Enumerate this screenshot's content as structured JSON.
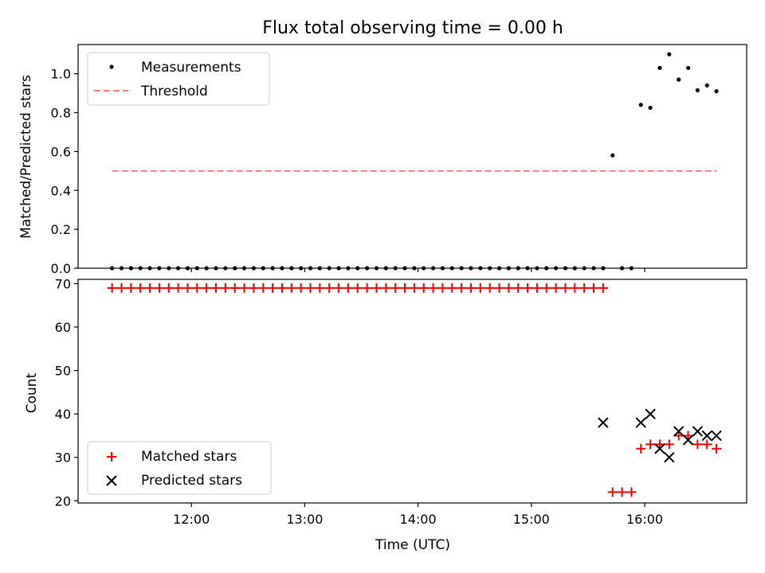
{
  "chart_data": [
    {
      "type": "scatter",
      "title": "Flux total observing time = 0.00 h",
      "xlabel": "",
      "ylabel": "Matched/Predicted stars",
      "ylim": [
        0,
        1.15
      ],
      "yticks": [
        "0.0",
        "0.2",
        "0.4",
        "0.6",
        "0.8",
        "1.0"
      ],
      "xlim": [
        "11:00",
        "16:54"
      ],
      "legend_position": "upper-left",
      "colors": {
        "measurements": "#000000",
        "threshold": "#ff7f7f"
      },
      "series": [
        {
          "name": "Measurements",
          "marker": "dot",
          "x": [
            "11:18",
            "11:23",
            "11:28",
            "11:33",
            "11:38",
            "11:43",
            "11:48",
            "11:53",
            "11:58",
            "12:03",
            "12:08",
            "12:13",
            "12:18",
            "12:23",
            "12:28",
            "12:33",
            "12:38",
            "12:43",
            "12:48",
            "12:53",
            "12:58",
            "13:03",
            "13:08",
            "13:13",
            "13:18",
            "13:23",
            "13:28",
            "13:33",
            "13:38",
            "13:43",
            "13:48",
            "13:53",
            "13:58",
            "14:03",
            "14:08",
            "14:13",
            "14:18",
            "14:23",
            "14:28",
            "14:33",
            "14:38",
            "14:43",
            "14:48",
            "14:53",
            "14:58",
            "15:03",
            "15:08",
            "15:13",
            "15:18",
            "15:23",
            "15:28",
            "15:33",
            "15:38",
            "15:43",
            "15:48",
            "15:53",
            "15:58",
            "16:03",
            "16:08",
            "16:13",
            "16:18",
            "16:23",
            "16:28",
            "16:33",
            "16:38"
          ],
          "y": [
            0,
            0,
            0,
            0,
            0,
            0,
            0,
            0,
            0,
            0,
            0,
            0,
            0,
            0,
            0,
            0,
            0,
            0,
            0,
            0,
            0,
            0,
            0,
            0,
            0,
            0,
            0,
            0,
            0,
            0,
            0,
            0,
            0,
            0,
            0,
            0,
            0,
            0,
            0,
            0,
            0,
            0,
            0,
            0,
            0,
            0,
            0,
            0,
            0,
            0,
            0,
            0,
            0,
            0.58,
            0,
            0,
            0.84,
            0.825,
            1.03,
            1.1,
            0.97,
            1.03,
            0.915,
            0.94,
            0.91
          ]
        },
        {
          "name": "Threshold",
          "style": "dashed-line",
          "x": [
            "11:18",
            "16:38"
          ],
          "y": [
            0.5,
            0.5
          ]
        }
      ]
    },
    {
      "type": "scatter",
      "title": "",
      "xlabel": "Time (UTC)",
      "ylabel": "Count",
      "ylim": [
        19.5,
        71
      ],
      "yticks": [
        "20",
        "30",
        "40",
        "50",
        "60",
        "70"
      ],
      "xticks": [
        "12:00",
        "13:00",
        "14:00",
        "15:00",
        "16:00"
      ],
      "legend_position": "lower-left",
      "colors": {
        "matched": "#ff0000",
        "predicted": "#000000"
      },
      "series": [
        {
          "name": "Matched stars",
          "marker": "plus",
          "x": [
            "11:18",
            "11:23",
            "11:28",
            "11:33",
            "11:38",
            "11:43",
            "11:48",
            "11:53",
            "11:58",
            "12:03",
            "12:08",
            "12:13",
            "12:18",
            "12:23",
            "12:28",
            "12:33",
            "12:38",
            "12:43",
            "12:48",
            "12:53",
            "12:58",
            "13:03",
            "13:08",
            "13:13",
            "13:18",
            "13:23",
            "13:28",
            "13:33",
            "13:38",
            "13:43",
            "13:48",
            "13:53",
            "13:58",
            "14:03",
            "14:08",
            "14:13",
            "14:18",
            "14:23",
            "14:28",
            "14:33",
            "14:38",
            "14:43",
            "14:48",
            "14:53",
            "14:58",
            "15:03",
            "15:08",
            "15:13",
            "15:18",
            "15:23",
            "15:28",
            "15:33",
            "15:38",
            "15:43",
            "15:48",
            "15:53",
            "15:58",
            "16:03",
            "16:08",
            "16:13",
            "16:18",
            "16:23",
            "16:28",
            "16:33",
            "16:38"
          ],
          "y": [
            69,
            69,
            69,
            69,
            69,
            69,
            69,
            69,
            69,
            69,
            69,
            69,
            69,
            69,
            69,
            69,
            69,
            69,
            69,
            69,
            69,
            69,
            69,
            69,
            69,
            69,
            69,
            69,
            69,
            69,
            69,
            69,
            69,
            69,
            69,
            69,
            69,
            69,
            69,
            69,
            69,
            69,
            69,
            69,
            69,
            69,
            69,
            69,
            69,
            69,
            69,
            69,
            69,
            22,
            22,
            22,
            32,
            33,
            33,
            33,
            35,
            35,
            33,
            33,
            32
          ]
        },
        {
          "name": "Predicted stars",
          "marker": "x",
          "x": [
            "15:38",
            "15:58",
            "16:03",
            "16:08",
            "16:13",
            "16:18",
            "16:23",
            "16:28",
            "16:33",
            "16:38"
          ],
          "y": [
            38,
            38,
            40,
            32,
            30,
            36,
            34,
            36,
            35,
            35
          ]
        }
      ]
    }
  ]
}
